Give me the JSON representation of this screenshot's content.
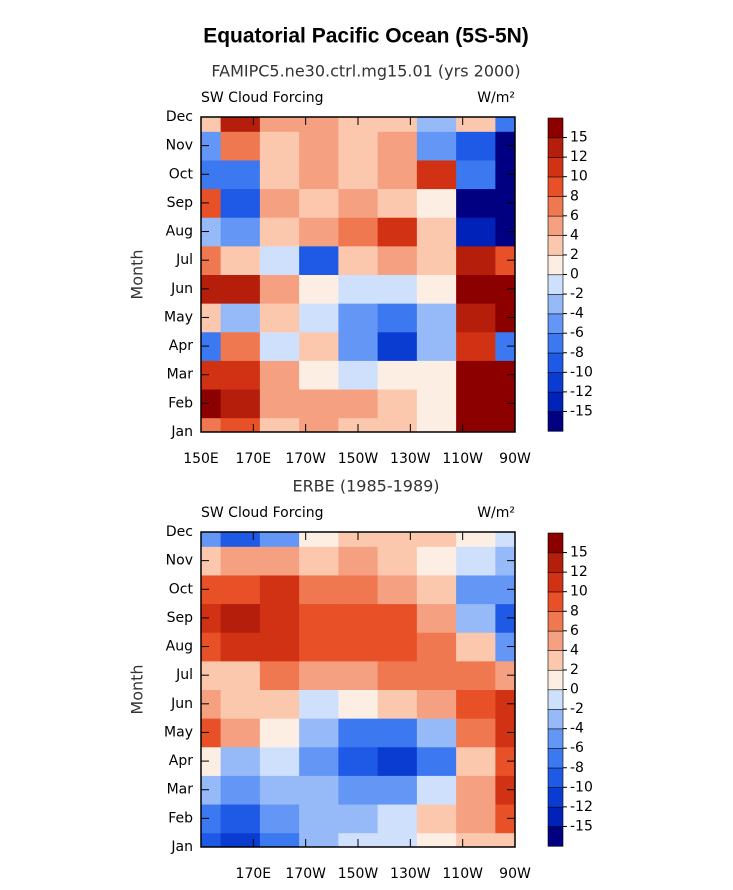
{
  "title": "Equatorial Pacific Ocean (5S-5N)",
  "chart_data": [
    {
      "type": "heatmap",
      "title": "FAMIPC5.ne30.ctrl.mg15.01 (yrs 2000)",
      "left_label": "SW Cloud Forcing",
      "right_label": "W/m²",
      "ylabel": "Month",
      "x": [
        150,
        165,
        180,
        195,
        210,
        225,
        240,
        255,
        270
      ],
      "categories": [
        "Jan",
        "Feb",
        "Mar",
        "Apr",
        "May",
        "Jun",
        "Jul",
        "Aug",
        "Sep",
        "Oct",
        "Nov",
        "Dec"
      ],
      "xlim": [
        150,
        270
      ],
      "xticks": [
        {
          "value": 150,
          "label": "150E"
        },
        {
          "value": 170,
          "label": "170E"
        },
        {
          "value": 190,
          "label": "170W"
        },
        {
          "value": 210,
          "label": "150W"
        },
        {
          "value": 230,
          "label": "130W"
        },
        {
          "value": 250,
          "label": "110W"
        },
        {
          "value": 270,
          "label": "90W"
        }
      ],
      "values": [
        [
          6,
          8,
          2,
          4,
          3,
          2,
          0,
          15,
          15
        ],
        [
          15,
          12,
          4,
          4,
          4,
          2,
          0,
          16,
          16
        ],
        [
          10,
          10,
          4,
          0,
          -2,
          0,
          0,
          15,
          16
        ],
        [
          -8,
          6,
          -2,
          2,
          -6,
          -12,
          -4,
          10,
          -8
        ],
        [
          2,
          -4,
          2,
          -2,
          -6,
          -8,
          -4,
          12,
          15
        ],
        [
          12,
          12,
          4,
          0,
          -2,
          -2,
          0,
          16,
          16
        ],
        [
          6,
          2,
          -2,
          -10,
          2,
          4,
          2,
          12,
          8
        ],
        [
          -4,
          -6,
          2,
          4,
          6,
          10,
          2,
          -15,
          -16
        ],
        [
          8,
          -10,
          4,
          2,
          4,
          2,
          0,
          -16,
          -16
        ],
        [
          -8,
          -8,
          2,
          4,
          2,
          4,
          10,
          -8,
          -16
        ],
        [
          -6,
          6,
          2,
          4,
          2,
          4,
          -6,
          -10,
          -16
        ],
        [
          2,
          12,
          4,
          4,
          2,
          2,
          -4,
          2,
          -8
        ]
      ],
      "levels": [
        -15,
        -12,
        -10,
        -8,
        -6,
        -4,
        -2,
        0,
        2,
        4,
        6,
        8,
        10,
        12,
        15
      ],
      "colors": [
        "#000080",
        "#0022b8",
        "#0a3cd2",
        "#1e5ae6",
        "#3c78f0",
        "#6496f5",
        "#96b9f8",
        "#cfe0fc",
        "#fdeee4",
        "#fbc8ae",
        "#f6a082",
        "#f07850",
        "#e85028",
        "#d23214",
        "#b41e0a",
        "#8c0000"
      ]
    },
    {
      "type": "heatmap",
      "title": "ERBE (1985-1989)",
      "left_label": "SW Cloud Forcing",
      "right_label": "W/m²",
      "ylabel": "Month",
      "x": [
        150,
        165,
        180,
        195,
        210,
        225,
        240,
        255,
        270
      ],
      "categories": [
        "Jan",
        "Feb",
        "Mar",
        "Apr",
        "May",
        "Jun",
        "Jul",
        "Aug",
        "Sep",
        "Oct",
        "Nov",
        "Dec"
      ],
      "xlim": [
        150,
        270
      ],
      "xticks": [
        {
          "value": 170,
          "label": "170E"
        },
        {
          "value": 190,
          "label": "170W"
        },
        {
          "value": 210,
          "label": "150W"
        },
        {
          "value": 230,
          "label": "130W"
        },
        {
          "value": 250,
          "label": "110W"
        },
        {
          "value": 270,
          "label": "90W"
        }
      ],
      "values": [
        [
          -10,
          -12,
          -8,
          -4,
          -2,
          -2,
          0,
          2,
          2
        ],
        [
          -8,
          -10,
          -6,
          -4,
          -4,
          -2,
          2,
          4,
          8
        ],
        [
          -4,
          -6,
          -4,
          -4,
          -6,
          -6,
          -2,
          4,
          10
        ],
        [
          0,
          -4,
          -2,
          -6,
          -10,
          -12,
          -8,
          2,
          8
        ],
        [
          8,
          4,
          0,
          -4,
          -8,
          -8,
          -4,
          6,
          10
        ],
        [
          4,
          2,
          2,
          -2,
          0,
          2,
          4,
          8,
          10
        ],
        [
          2,
          2,
          6,
          4,
          4,
          6,
          6,
          6,
          4
        ],
        [
          8,
          10,
          10,
          8,
          8,
          8,
          6,
          2,
          -6
        ],
        [
          10,
          12,
          10,
          8,
          8,
          8,
          4,
          -4,
          -10
        ],
        [
          8,
          8,
          10,
          6,
          6,
          4,
          2,
          -6,
          -6
        ],
        [
          2,
          4,
          4,
          2,
          4,
          2,
          0,
          -2,
          -4
        ],
        [
          -6,
          -10,
          -6,
          0,
          2,
          2,
          2,
          0,
          -2
        ]
      ],
      "levels": [
        -15,
        -12,
        -10,
        -8,
        -6,
        -4,
        -2,
        0,
        2,
        4,
        6,
        8,
        10,
        12,
        15
      ],
      "colors": [
        "#000080",
        "#0022b8",
        "#0a3cd2",
        "#1e5ae6",
        "#3c78f0",
        "#6496f5",
        "#96b9f8",
        "#cfe0fc",
        "#fdeee4",
        "#fbc8ae",
        "#f6a082",
        "#f07850",
        "#e85028",
        "#d23214",
        "#b41e0a",
        "#8c0000"
      ]
    }
  ]
}
